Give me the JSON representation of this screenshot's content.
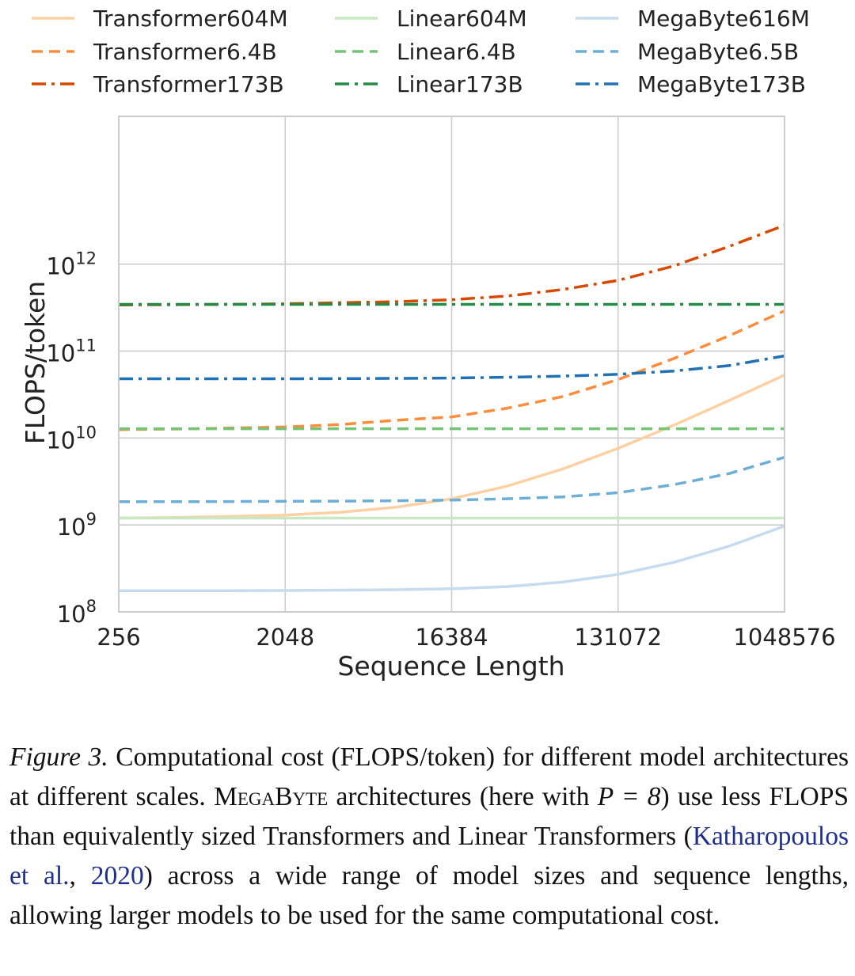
{
  "chart_data": {
    "type": "line",
    "xscale": "log2",
    "yscale": "log10",
    "xlabel": "Sequence Length",
    "ylabel": "FLOPS/token",
    "x_ticks": [
      256,
      2048,
      16384,
      131072,
      1048576
    ],
    "x_tick_labels": [
      "256",
      "2048",
      "16384",
      "131072",
      "1048576"
    ],
    "y_ticks_exp": [
      8,
      9,
      10,
      11,
      12
    ],
    "y_tick_base": "10",
    "xlim": [
      256,
      1048576
    ],
    "ylim_exp": [
      8,
      13.7
    ],
    "grid": true,
    "legend_position": "top",
    "x": [
      256,
      512,
      1024,
      2048,
      4096,
      8192,
      16384,
      32768,
      65536,
      131072,
      262144,
      524288,
      1048576
    ],
    "series": [
      {
        "name": "Transformer604M",
        "color": "#fdd0a2",
        "dash": "solid",
        "values": [
          1200000000.0,
          1220000000.0,
          1250000000.0,
          1300000000.0,
          1400000000.0,
          1600000000.0,
          2000000000.0,
          2800000000.0,
          4400000000.0,
          7600000000.0,
          14000000000.0,
          27000000000.0,
          53000000000.0
        ]
      },
      {
        "name": "Transformer6.4B",
        "color": "#fd8d3c",
        "dash": "dashed",
        "values": [
          12500000000.0,
          12700000000.0,
          13000000000.0,
          13400000000.0,
          14300000000.0,
          16000000000.0,
          17500000000.0,
          22000000000.0,
          30000000000.0,
          47000000000.0,
          82000000000.0,
          150000000000.0,
          290000000000.0
        ]
      },
      {
        "name": "Transformer173B",
        "color": "#d94801",
        "dash": "dashdot",
        "values": [
          340000000000.0,
          342000000000.0,
          345000000000.0,
          350000000000.0,
          360000000000.0,
          370000000000.0,
          390000000000.0,
          430000000000.0,
          510000000000.0,
          650000000000.0,
          950000000000.0,
          1600000000000.0,
          2800000000000.0
        ]
      },
      {
        "name": "Linear604M",
        "color": "#c7e9c0",
        "dash": "solid",
        "values": [
          1200000000.0,
          1200000000.0,
          1200000000.0,
          1200000000.0,
          1200000000.0,
          1200000000.0,
          1200000000.0,
          1200000000.0,
          1200000000.0,
          1200000000.0,
          1200000000.0,
          1200000000.0,
          1200000000.0
        ]
      },
      {
        "name": "Linear6.4B",
        "color": "#74c476",
        "dash": "dashed",
        "values": [
          12800000000.0,
          12800000000.0,
          12800000000.0,
          12800000000.0,
          12800000000.0,
          12800000000.0,
          12800000000.0,
          12800000000.0,
          12800000000.0,
          12800000000.0,
          12800000000.0,
          12800000000.0,
          12800000000.0
        ]
      },
      {
        "name": "Linear173B",
        "color": "#238b45",
        "dash": "dashdot",
        "values": [
          345000000000.0,
          345000000000.0,
          345000000000.0,
          345000000000.0,
          345000000000.0,
          345000000000.0,
          345000000000.0,
          345000000000.0,
          345000000000.0,
          345000000000.0,
          345000000000.0,
          345000000000.0,
          345000000000.0
        ]
      },
      {
        "name": "MegaByte616M",
        "color": "#c6dbef",
        "dash": "solid",
        "values": [
          175000000.0,
          175000000.0,
          175000000.0,
          176000000.0,
          178000000.0,
          180000000.0,
          185000000.0,
          195000000.0,
          220000000.0,
          270000000.0,
          370000000.0,
          570000000.0,
          970000000.0
        ]
      },
      {
        "name": "MegaByte6.5B",
        "color": "#6baed6",
        "dash": "dashed",
        "values": [
          1850000000.0,
          1850000000.0,
          1860000000.0,
          1870000000.0,
          1880000000.0,
          1900000000.0,
          1930000000.0,
          2000000000.0,
          2100000000.0,
          2350000000.0,
          2900000000.0,
          3900000000.0,
          6000000000.0
        ]
      },
      {
        "name": "MegaByte173B",
        "color": "#2171b5",
        "dash": "dashdot",
        "values": [
          48000000000.0,
          48000000000.0,
          48000000000.0,
          48000000000.0,
          48200000000.0,
          48500000000.0,
          49000000000.0,
          50000000000.0,
          51500000000.0,
          54000000000.0,
          59000000000.0,
          68000000000.0,
          88000000000.0
        ]
      }
    ]
  },
  "caption": {
    "figure_label": "Figure 3.",
    "text_1": " Computational cost (FLOPS/token) for different model architectures at different scales. ",
    "megabyte": "MegaByte",
    "text_2": " architectures (here with ",
    "math": "P = 8",
    "text_3": ") use less FLOPS than equivalently sized Transformers and Linear Transformers (",
    "ref_authors": "Katharopoulos et al.",
    "ref_sep": ", ",
    "ref_year": "2020",
    "text_4": ") across a wide range of model sizes and sequence lengths, allowing larger models to be used for the same computational cost."
  }
}
